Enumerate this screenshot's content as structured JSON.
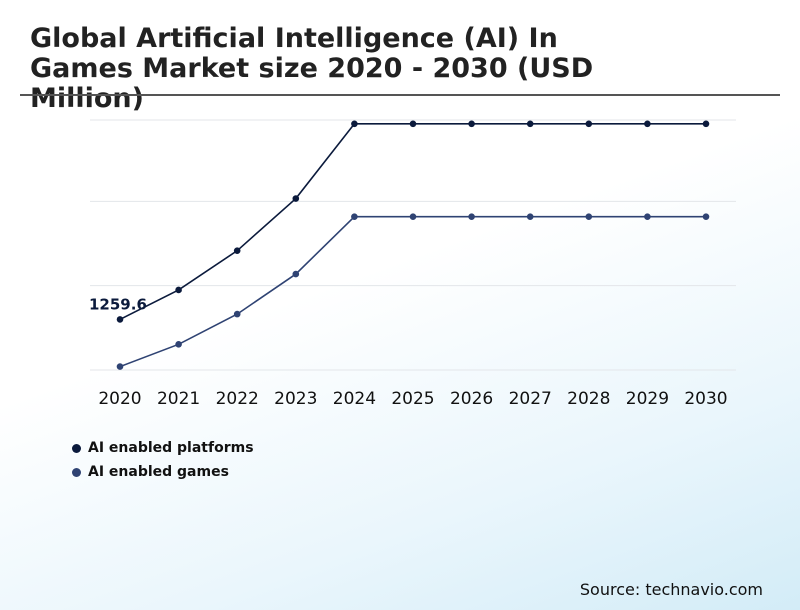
{
  "chart_data": {
    "type": "line",
    "title": "Global Artificial Intelligence (AI) In Games Market size 2020 - 2030 (USD Million)",
    "categories": [
      "2020",
      "2021",
      "2022",
      "2023",
      "2024",
      "2025",
      "2026",
      "2027",
      "2028",
      "2029",
      "2030"
    ],
    "series": [
      {
        "name": "AI enabled platforms",
        "color": "#0b1a3c",
        "values": [
          1259.6,
          1650,
          2170,
          2860,
          3850,
          3850,
          3850,
          3850,
          3850,
          3850,
          3850
        ]
      },
      {
        "name": "AI enabled games",
        "color": "#2f4373",
        "values": [
          635,
          930,
          1330,
          1860,
          2620,
          2620,
          2620,
          2620,
          2620,
          2620,
          2620
        ]
      }
    ],
    "annotations": [
      {
        "series": 0,
        "index": 0,
        "text": "1259.6"
      }
    ],
    "ylim": [
      590,
      3900
    ],
    "gridlines": [
      590,
      1707,
      2823,
      3940
    ],
    "grid": true,
    "legend_position": "bottom-left",
    "xlabel": "",
    "ylabel": ""
  },
  "source": "Source: technavio.com"
}
